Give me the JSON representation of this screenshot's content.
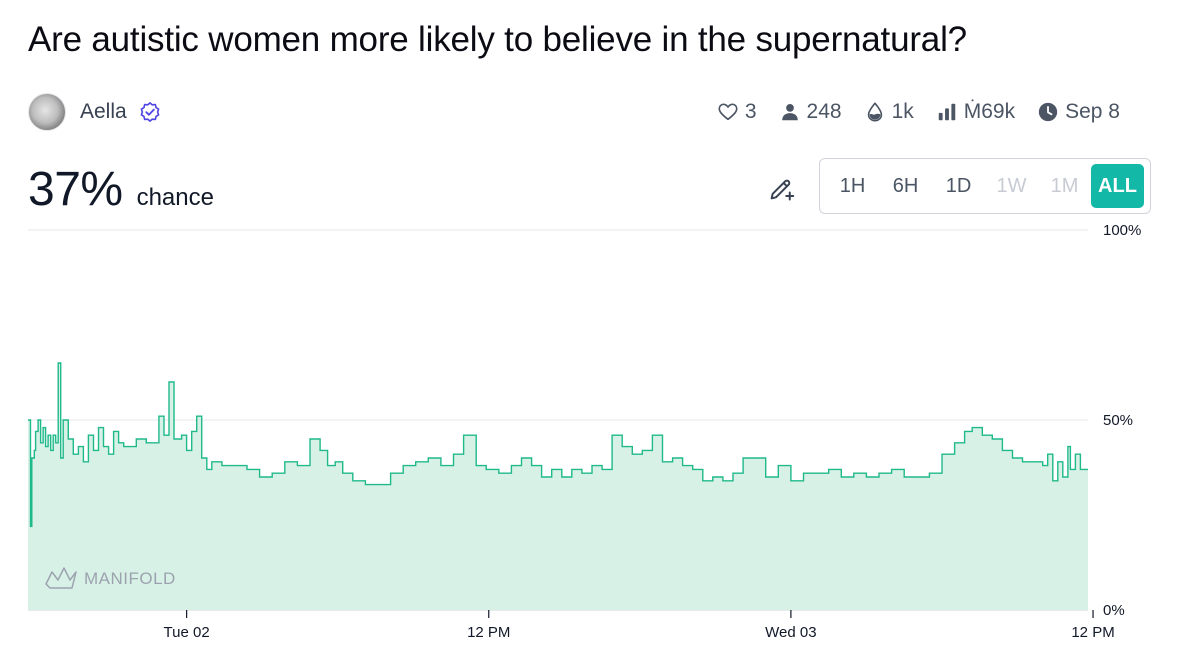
{
  "market": {
    "title": "Are autistic women more likely to believe in the supernatural?",
    "author": "Aella",
    "probability": "37%",
    "probability_label": "chance"
  },
  "stats": {
    "likes": "3",
    "traders": "248",
    "liquidity": "1k",
    "volume": "Ṁ69k",
    "close_date": "Sep 8"
  },
  "time_ranges": [
    {
      "label": "1H",
      "state": "enabled"
    },
    {
      "label": "6H",
      "state": "enabled"
    },
    {
      "label": "1D",
      "state": "enabled"
    },
    {
      "label": "1W",
      "state": "disabled"
    },
    {
      "label": "1M",
      "state": "disabled"
    },
    {
      "label": "ALL",
      "state": "active"
    }
  ],
  "watermark": "MANIFOLD",
  "colors": {
    "accent": "#14b8a6",
    "line": "#1fb98a",
    "fill": "#d8f1e6",
    "verified": "#4f46e5"
  },
  "chart_data": {
    "type": "area",
    "x_unit": "hours since Mon 01 00:00",
    "xlim": [
      17.7,
      59.8
    ],
    "ylim": [
      0,
      100
    ],
    "y_ticks": [
      "0%",
      "50%",
      "100%"
    ],
    "y_tick_values": [
      0,
      50,
      100
    ],
    "x_tick_labels": [
      "Tue 02",
      "12 PM",
      "Wed 03",
      "12 PM"
    ],
    "x_tick_values": [
      24,
      36,
      48,
      60
    ],
    "grid": "horizontal",
    "points": [
      [
        17.7,
        50
      ],
      [
        17.8,
        22
      ],
      [
        17.85,
        40
      ],
      [
        17.95,
        42
      ],
      [
        18.0,
        47
      ],
      [
        18.1,
        50
      ],
      [
        18.2,
        44
      ],
      [
        18.3,
        48
      ],
      [
        18.4,
        43
      ],
      [
        18.5,
        46
      ],
      [
        18.6,
        42
      ],
      [
        18.7,
        46
      ],
      [
        18.8,
        44
      ],
      [
        18.9,
        65
      ],
      [
        19.0,
        40
      ],
      [
        19.1,
        50
      ],
      [
        19.3,
        45
      ],
      [
        19.5,
        41
      ],
      [
        19.7,
        43
      ],
      [
        19.9,
        39
      ],
      [
        20.1,
        46
      ],
      [
        20.3,
        42
      ],
      [
        20.5,
        48
      ],
      [
        20.7,
        43
      ],
      [
        20.9,
        41
      ],
      [
        21.1,
        47
      ],
      [
        21.3,
        44
      ],
      [
        21.5,
        43
      ],
      [
        22.0,
        45
      ],
      [
        22.4,
        44
      ],
      [
        22.9,
        51
      ],
      [
        23.1,
        46
      ],
      [
        23.3,
        60
      ],
      [
        23.5,
        45
      ],
      [
        23.8,
        46
      ],
      [
        24.0,
        42
      ],
      [
        24.2,
        47
      ],
      [
        24.4,
        51
      ],
      [
        24.6,
        40
      ],
      [
        24.8,
        37
      ],
      [
        25.0,
        39
      ],
      [
        25.4,
        38
      ],
      [
        25.9,
        38
      ],
      [
        26.4,
        37
      ],
      [
        26.9,
        35
      ],
      [
        27.4,
        36
      ],
      [
        27.9,
        39
      ],
      [
        28.4,
        38
      ],
      [
        28.9,
        45
      ],
      [
        29.3,
        42
      ],
      [
        29.6,
        38
      ],
      [
        29.9,
        39
      ],
      [
        30.2,
        36
      ],
      [
        30.6,
        34
      ],
      [
        31.1,
        33
      ],
      [
        31.6,
        33
      ],
      [
        32.1,
        36
      ],
      [
        32.6,
        38
      ],
      [
        33.1,
        39
      ],
      [
        33.6,
        40
      ],
      [
        34.1,
        38
      ],
      [
        34.6,
        41
      ],
      [
        35.0,
        46
      ],
      [
        35.5,
        38
      ],
      [
        35.9,
        37
      ],
      [
        36.4,
        36
      ],
      [
        36.9,
        38
      ],
      [
        37.3,
        40
      ],
      [
        37.7,
        38
      ],
      [
        38.1,
        35
      ],
      [
        38.5,
        37
      ],
      [
        38.9,
        35
      ],
      [
        39.3,
        37
      ],
      [
        39.7,
        36
      ],
      [
        40.1,
        38
      ],
      [
        40.5,
        37
      ],
      [
        40.9,
        46
      ],
      [
        41.3,
        43
      ],
      [
        41.7,
        41
      ],
      [
        42.1,
        42
      ],
      [
        42.5,
        46
      ],
      [
        42.9,
        39
      ],
      [
        43.3,
        40
      ],
      [
        43.7,
        38
      ],
      [
        44.1,
        37
      ],
      [
        44.5,
        34
      ],
      [
        44.9,
        35
      ],
      [
        45.3,
        34
      ],
      [
        45.7,
        36
      ],
      [
        46.1,
        40
      ],
      [
        46.6,
        40
      ],
      [
        47.0,
        35
      ],
      [
        47.5,
        38
      ],
      [
        48.0,
        34
      ],
      [
        48.5,
        36
      ],
      [
        49.0,
        36
      ],
      [
        49.5,
        37
      ],
      [
        50.0,
        35
      ],
      [
        50.5,
        36
      ],
      [
        51.0,
        35
      ],
      [
        51.5,
        36
      ],
      [
        52.0,
        37
      ],
      [
        52.5,
        35
      ],
      [
        53.0,
        35
      ],
      [
        53.5,
        36
      ],
      [
        54.0,
        41
      ],
      [
        54.5,
        44
      ],
      [
        54.9,
        47
      ],
      [
        55.2,
        48
      ],
      [
        55.6,
        46
      ],
      [
        56.0,
        45
      ],
      [
        56.4,
        42
      ],
      [
        56.8,
        40
      ],
      [
        57.2,
        39
      ],
      [
        57.6,
        39
      ],
      [
        58.0,
        38
      ],
      [
        58.2,
        41
      ],
      [
        58.4,
        34
      ],
      [
        58.6,
        39
      ],
      [
        58.8,
        35
      ],
      [
        59.0,
        43
      ],
      [
        59.1,
        37
      ],
      [
        59.3,
        41
      ],
      [
        59.5,
        37
      ],
      [
        59.8,
        37
      ]
    ]
  }
}
